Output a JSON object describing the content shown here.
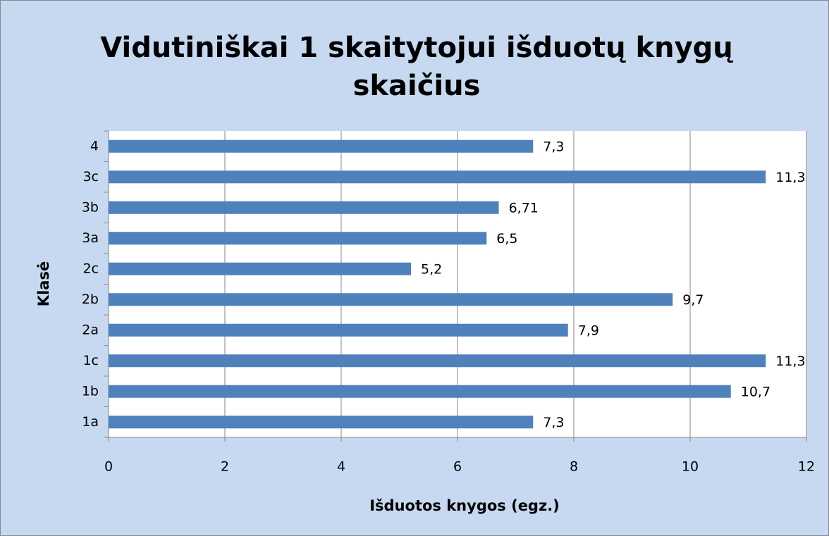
{
  "chart_data": {
    "type": "barh",
    "title": "Vidutiniškai 1 skaitytojui išduotų knygų skaičius",
    "xlabel": "Išduotos knygos (egz.)",
    "ylabel": "Klasė",
    "categories": [
      "1a",
      "1b",
      "1c",
      "2a",
      "2b",
      "2c",
      "3a",
      "3b",
      "3c",
      "4"
    ],
    "values": [
      7.3,
      10.7,
      11.3,
      7.9,
      9.7,
      5.2,
      6.5,
      6.71,
      11.3,
      7.3
    ],
    "value_labels": [
      "7,3",
      "10,7",
      "11,3",
      "7,9",
      "9,7",
      "5,2",
      "6,5",
      "6,71",
      "11,3",
      "7,3"
    ],
    "color": "#4f81bd",
    "xlim": [
      0,
      12
    ],
    "xticks": [
      0,
      2,
      4,
      6,
      8,
      10,
      12
    ],
    "grid": true
  }
}
